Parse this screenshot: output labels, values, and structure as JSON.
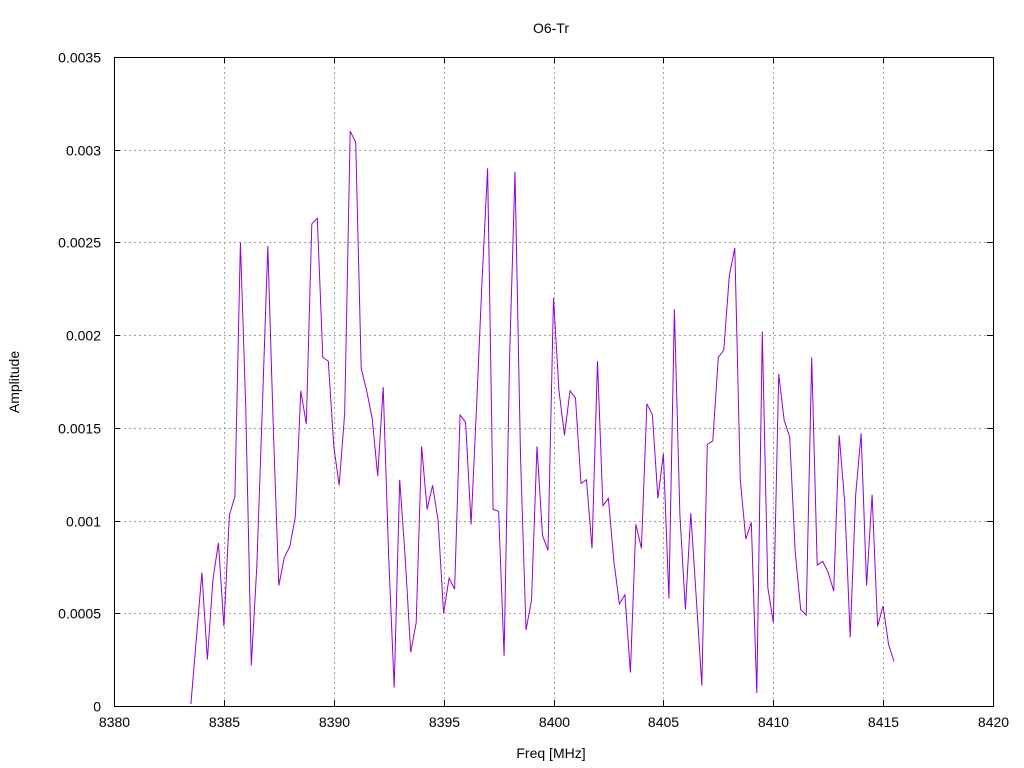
{
  "chart_data": {
    "type": "line",
    "title": "O6-Tr",
    "xlabel": "Freq [MHz]",
    "ylabel": "Amplitude",
    "xlim": [
      8380,
      8420
    ],
    "ylim": [
      0,
      0.0035
    ],
    "x_ticks": [
      8380,
      8385,
      8390,
      8395,
      8400,
      8405,
      8410,
      8415,
      8420
    ],
    "x_tick_labels": [
      "8380",
      "8385",
      "8390",
      "8395",
      "8400",
      "8405",
      "8410",
      "8415",
      "8420"
    ],
    "y_ticks": [
      0,
      0.0005,
      0.001,
      0.0015,
      0.002,
      0.0025,
      0.003,
      0.0035
    ],
    "y_tick_labels": [
      "0",
      "0.0005",
      "0.001",
      "0.0015",
      "0.002",
      "0.0025",
      "0.003",
      "0.0035"
    ],
    "grid": true,
    "legend": "none",
    "series": [
      {
        "color": "#9400d3",
        "x": [
          8383.5,
          8384.0,
          8384.25,
          8384.5,
          8384.75,
          8385.0,
          8385.25,
          8385.5,
          8385.75,
          8386.0,
          8386.25,
          8386.5,
          8386.75,
          8387.0,
          8387.25,
          8387.5,
          8387.75,
          8388.0,
          8388.25,
          8388.5,
          8388.75,
          8389.0,
          8389.25,
          8389.5,
          8389.75,
          8390.0,
          8390.25,
          8390.5,
          8390.75,
          8391.0,
          8391.25,
          8391.5,
          8391.75,
          8392.0,
          8392.25,
          8392.5,
          8392.75,
          8393.0,
          8393.25,
          8393.5,
          8393.75,
          8394.0,
          8394.25,
          8394.5,
          8394.75,
          8395.0,
          8395.25,
          8395.5,
          8395.75,
          8396.0,
          8396.25,
          8396.5,
          8396.75,
          8397.0,
          8397.25,
          8397.5,
          8397.75,
          8398.0,
          8398.25,
          8398.5,
          8398.75,
          8399.0,
          8399.25,
          8399.5,
          8399.75,
          8400.0,
          8400.25,
          8400.5,
          8400.75,
          8401.0,
          8401.25,
          8401.5,
          8401.75,
          8402.0,
          8402.25,
          8402.5,
          8402.75,
          8403.0,
          8403.25,
          8403.5,
          8403.75,
          8404.0,
          8404.25,
          8404.5,
          8404.75,
          8405.0,
          8405.25,
          8405.5,
          8405.75,
          8406.0,
          8406.25,
          8406.5,
          8406.75,
          8407.0,
          8407.25,
          8407.5,
          8407.75,
          8408.0,
          8408.25,
          8408.5,
          8408.75,
          8409.0,
          8409.25,
          8409.5,
          8409.75,
          8410.0,
          8410.25,
          8410.5,
          8410.75,
          8411.0,
          8411.25,
          8411.5,
          8411.75,
          8412.0,
          8412.25,
          8412.5,
          8412.75,
          8413.0,
          8413.25,
          8413.5,
          8413.75,
          8414.0,
          8414.25,
          8414.5,
          8414.75,
          8415.0,
          8415.25,
          8415.5
        ],
        "y": [
          1e-05,
          0.00072,
          0.00025,
          0.00068,
          0.00088,
          0.00043,
          0.00103,
          0.00113,
          0.0025,
          0.0016,
          0.00022,
          0.00075,
          0.0016,
          0.00248,
          0.0015,
          0.00065,
          0.0008,
          0.00086,
          0.00102,
          0.0017,
          0.00152,
          0.0026,
          0.00263,
          0.00188,
          0.00186,
          0.0014,
          0.00119,
          0.00158,
          0.0031,
          0.00304,
          0.00182,
          0.0017,
          0.00155,
          0.00124,
          0.00172,
          0.0008,
          0.0001,
          0.00122,
          0.0008,
          0.00029,
          0.00045,
          0.0014,
          0.00106,
          0.00119,
          0.001,
          0.0005,
          0.00069,
          0.00063,
          0.00157,
          0.00153,
          0.00098,
          0.00162,
          0.0023,
          0.0029,
          0.00106,
          0.00105,
          0.00027,
          0.00188,
          0.00288,
          0.00135,
          0.00041,
          0.00057,
          0.0014,
          0.00092,
          0.00084,
          0.0022,
          0.0017,
          0.00146,
          0.0017,
          0.00166,
          0.0012,
          0.00122,
          0.00085,
          0.00186,
          0.00108,
          0.00112,
          0.00078,
          0.00055,
          0.0006,
          0.00018,
          0.00098,
          0.00085,
          0.00163,
          0.00157,
          0.00112,
          0.00136,
          0.00058,
          0.00214,
          0.00103,
          0.00052,
          0.00104,
          0.00058,
          0.00011,
          0.00141,
          0.00143,
          0.00188,
          0.00192,
          0.00232,
          0.00247,
          0.00122,
          0.0009,
          0.00099,
          7e-05,
          0.00202,
          0.00064,
          0.00045,
          0.00179,
          0.00154,
          0.00145,
          0.00083,
          0.00052,
          0.00049,
          0.00188,
          0.00076,
          0.00078,
          0.00072,
          0.00062,
          0.00146,
          0.0011,
          0.00037,
          0.00114,
          0.00147,
          0.00065,
          0.00114,
          0.00043,
          0.00054,
          0.00033,
          0.00024
        ]
      }
    ]
  }
}
